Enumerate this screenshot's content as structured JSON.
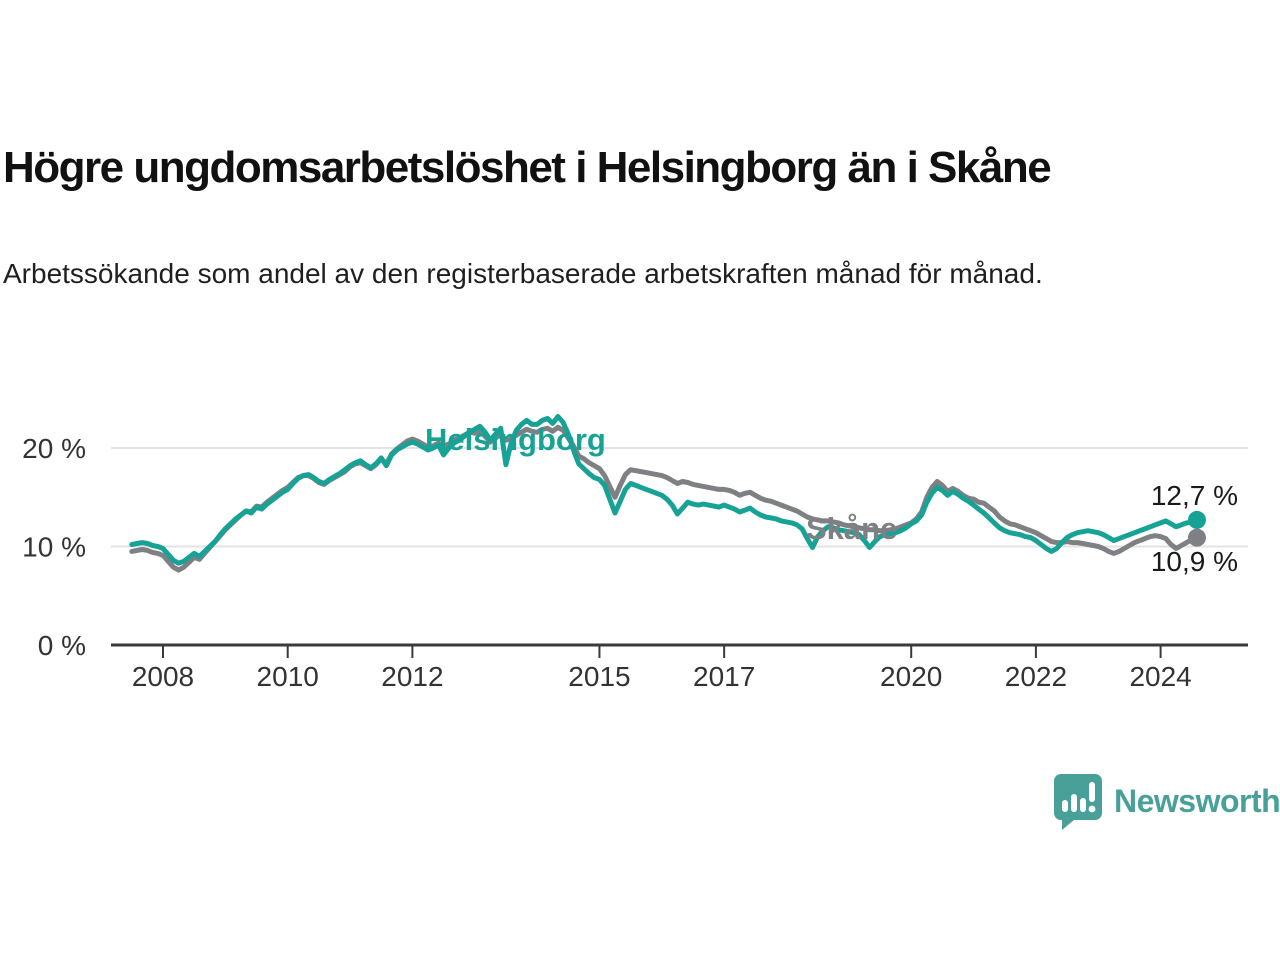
{
  "header": {
    "title": "Högre ungdomsarbetslöshet i Helsingborg än i Skåne",
    "subtitle": "Arbetssökande som andel av den registerbaserade arbetskraften månad för månad."
  },
  "chart_data": {
    "type": "line",
    "unit": "%",
    "x_start": {
      "year": 2007,
      "month": 7
    },
    "x_end": {
      "year": 2024,
      "month": 8
    },
    "x_tick_years": [
      2008,
      2010,
      2012,
      2015,
      2017,
      2020,
      2022,
      2024
    ],
    "y_ticks": [
      {
        "value": 0,
        "label": "0 %"
      },
      {
        "value": 10,
        "label": "10 %"
      },
      {
        "value": 20,
        "label": "20 %"
      }
    ],
    "ylim": [
      0,
      24
    ],
    "grid": "horizontal",
    "legend_position": "inline-labels",
    "series": [
      {
        "name": "Skåne",
        "color": "#7e8083",
        "end_value": 10.9,
        "end_label": "10,9 %",
        "values": [
          9.5,
          9.6,
          9.7,
          9.6,
          9.4,
          9.3,
          9.1,
          8.5,
          7.9,
          7.6,
          7.9,
          8.4,
          8.9,
          8.7,
          9.3,
          9.9,
          10.5,
          11.1,
          11.7,
          12.2,
          12.7,
          13.2,
          13.6,
          13.5,
          14.1,
          14.0,
          14.5,
          14.9,
          15.3,
          15.7,
          16.0,
          16.5,
          17.0,
          17.2,
          17.2,
          16.9,
          16.5,
          16.3,
          16.7,
          17.0,
          17.3,
          17.6,
          18.1,
          18.4,
          18.5,
          18.2,
          17.9,
          18.3,
          18.9,
          18.4,
          19.4,
          19.9,
          20.3,
          20.7,
          20.9,
          20.7,
          20.4,
          20.1,
          20.2,
          20.5,
          20.2,
          20.4,
          20.8,
          21.0,
          21.3,
          21.6,
          21.5,
          21.7,
          21.2,
          20.6,
          21.0,
          21.4,
          20.8,
          20.9,
          21.3,
          21.6,
          21.9,
          21.7,
          21.6,
          21.9,
          22.0,
          21.7,
          22.1,
          21.8,
          21.0,
          20.2,
          19.2,
          18.9,
          18.5,
          18.2,
          17.9,
          17.2,
          16.1,
          15.0,
          16.2,
          17.3,
          17.8,
          17.7,
          17.6,
          17.5,
          17.4,
          17.3,
          17.2,
          17.0,
          16.7,
          16.4,
          16.6,
          16.5,
          16.3,
          16.2,
          16.1,
          16.0,
          15.9,
          15.8,
          15.8,
          15.7,
          15.5,
          15.2,
          15.4,
          15.5,
          15.2,
          14.9,
          14.7,
          14.6,
          14.4,
          14.2,
          14.0,
          13.8,
          13.6,
          13.3,
          13.0,
          12.8,
          12.7,
          12.6,
          12.6,
          12.5,
          12.4,
          12.2,
          12.1,
          12.0,
          11.9,
          11.8,
          11.7,
          11.7,
          11.6,
          11.6,
          11.7,
          11.8,
          12.0,
          12.2,
          12.4,
          12.8,
          13.5,
          15.0,
          16.0,
          16.6,
          16.2,
          15.6,
          15.9,
          15.6,
          15.2,
          14.9,
          14.8,
          14.5,
          14.4,
          14.0,
          13.6,
          13.0,
          12.6,
          12.3,
          12.2,
          12.0,
          11.8,
          11.6,
          11.4,
          11.1,
          10.8,
          10.5,
          10.4,
          10.4,
          10.5,
          10.4,
          10.4,
          10.3,
          10.2,
          10.1,
          10.0,
          9.8,
          9.5,
          9.3,
          9.5,
          9.8,
          10.1,
          10.4,
          10.6,
          10.8,
          11.0,
          11.1,
          11.0,
          10.8,
          10.2,
          9.8,
          10.1,
          10.4,
          10.7,
          10.9
        ]
      },
      {
        "name": "Helsingborg",
        "color": "#17a296",
        "end_value": 12.7,
        "end_label": "12,7 %",
        "values": [
          10.2,
          10.3,
          10.4,
          10.3,
          10.1,
          10.0,
          9.8,
          9.2,
          8.6,
          8.3,
          8.5,
          8.9,
          9.3,
          9.0,
          9.5,
          10.0,
          10.5,
          11.2,
          11.8,
          12.3,
          12.8,
          13.2,
          13.6,
          13.4,
          14.0,
          13.8,
          14.3,
          14.7,
          15.1,
          15.5,
          15.8,
          16.4,
          16.9,
          17.2,
          17.3,
          17.0,
          16.6,
          16.4,
          16.8,
          17.1,
          17.4,
          17.8,
          18.2,
          18.5,
          18.7,
          18.3,
          18.0,
          18.4,
          19.0,
          18.2,
          19.3,
          19.8,
          20.1,
          20.4,
          20.6,
          20.4,
          20.1,
          19.8,
          20.0,
          20.3,
          19.3,
          20.0,
          20.5,
          20.8,
          21.2,
          21.6,
          21.9,
          22.2,
          21.6,
          20.8,
          21.4,
          22.0,
          18.3,
          20.5,
          21.8,
          22.4,
          22.8,
          22.4,
          22.4,
          22.8,
          23.0,
          22.5,
          23.2,
          22.6,
          21.4,
          19.8,
          18.4,
          17.9,
          17.4,
          17.0,
          16.8,
          16.2,
          14.8,
          13.4,
          14.6,
          15.8,
          16.4,
          16.2,
          16.0,
          15.8,
          15.6,
          15.4,
          15.2,
          14.8,
          14.2,
          13.3,
          13.9,
          14.5,
          14.3,
          14.2,
          14.3,
          14.2,
          14.1,
          14.0,
          14.2,
          14.0,
          13.8,
          13.5,
          13.7,
          13.9,
          13.5,
          13.2,
          13.0,
          12.9,
          12.8,
          12.6,
          12.5,
          12.4,
          12.2,
          11.8,
          10.8,
          9.9,
          11.0,
          11.6,
          12.0,
          11.9,
          11.7,
          11.6,
          11.5,
          11.4,
          11.2,
          10.6,
          9.9,
          10.5,
          11.0,
          11.2,
          11.3,
          11.4,
          11.6,
          11.9,
          12.3,
          12.6,
          13.2,
          14.5,
          15.4,
          16.0,
          15.7,
          15.2,
          15.6,
          15.3,
          14.9,
          14.6,
          14.2,
          13.8,
          13.4,
          12.9,
          12.4,
          11.9,
          11.6,
          11.4,
          11.3,
          11.2,
          11.0,
          10.9,
          10.6,
          10.2,
          9.8,
          9.5,
          9.8,
          10.4,
          10.9,
          11.2,
          11.4,
          11.5,
          11.6,
          11.5,
          11.4,
          11.2,
          10.9,
          10.6,
          10.8,
          11.0,
          11.2,
          11.4,
          11.6,
          11.8,
          12.0,
          12.2,
          12.4,
          12.6,
          12.3,
          12.0,
          12.2,
          12.4,
          12.5,
          12.7
        ]
      }
    ]
  },
  "branding": {
    "logo_text": "Newsworthy",
    "logo_color": "#48a099"
  }
}
